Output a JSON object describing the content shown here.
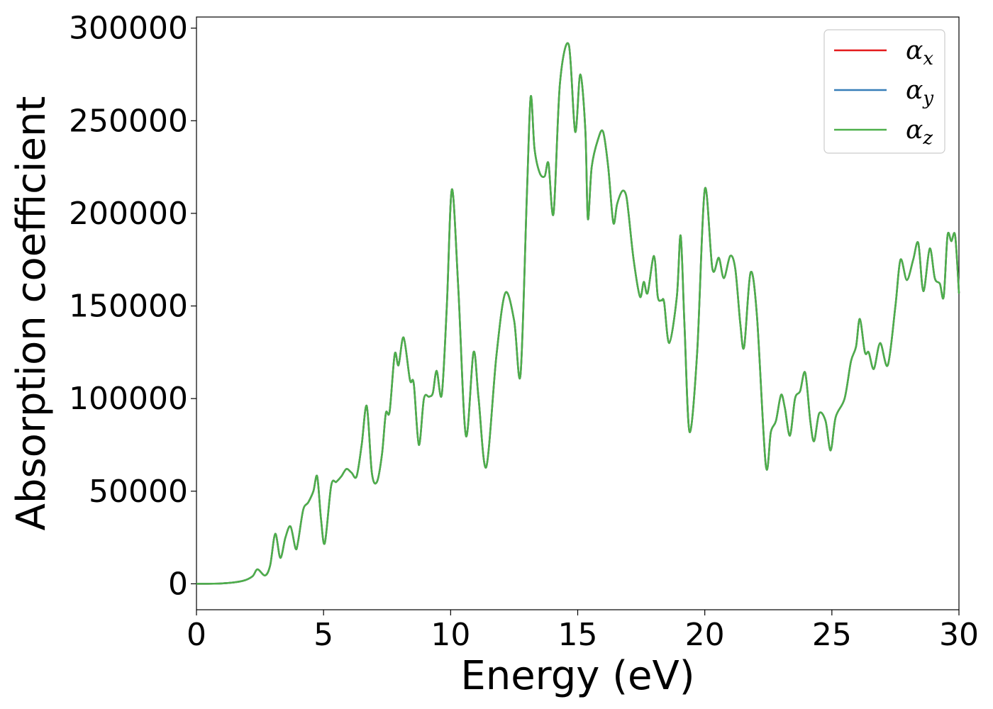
{
  "chart_data": {
    "type": "line",
    "title": "",
    "xlabel": "Energy (eV)",
    "ylabel": "Absorption coefficient",
    "xlim": [
      0,
      30
    ],
    "ylim": [
      -14000,
      306000
    ],
    "xticks": [
      0,
      5,
      10,
      15,
      20,
      25,
      30
    ],
    "yticks": [
      0,
      50000,
      100000,
      150000,
      200000,
      250000,
      300000
    ],
    "xtick_labels": [
      "0",
      "5",
      "10",
      "15",
      "20",
      "25",
      "30"
    ],
    "ytick_labels": [
      "0",
      "50000",
      "100000",
      "150000",
      "200000",
      "250000",
      "300000"
    ],
    "grid": false,
    "legend_position": "top-right",
    "series": [
      {
        "name": "α",
        "subscript": "x",
        "color": "#e41a1c"
      },
      {
        "name": "α",
        "subscript": "y",
        "color": "#377eb8"
      },
      {
        "name": "α",
        "subscript": "z",
        "color": "#4daf4a"
      }
    ],
    "x": [
      0,
      1.0,
      1.8,
      2.2,
      2.4,
      2.7,
      2.9,
      3.1,
      3.3,
      3.5,
      3.7,
      3.9,
      4.0,
      4.2,
      4.4,
      4.6,
      4.75,
      4.9,
      5.05,
      5.3,
      5.5,
      5.7,
      5.9,
      6.1,
      6.3,
      6.5,
      6.7,
      6.9,
      7.1,
      7.3,
      7.45,
      7.6,
      7.8,
      7.95,
      8.15,
      8.4,
      8.55,
      8.75,
      8.95,
      9.15,
      9.3,
      9.45,
      9.65,
      9.85,
      10.05,
      10.3,
      10.6,
      10.9,
      11.1,
      11.4,
      11.8,
      12.15,
      12.5,
      12.75,
      13.0,
      13.15,
      13.3,
      13.5,
      13.7,
      13.85,
      14.05,
      14.3,
      14.65,
      14.9,
      15.1,
      15.3,
      15.4,
      15.55,
      15.8,
      16.0,
      16.2,
      16.4,
      16.55,
      16.75,
      16.9,
      17.0,
      17.2,
      17.45,
      17.6,
      17.75,
      18.0,
      18.15,
      18.3,
      18.4,
      18.6,
      18.9,
      19.05,
      19.2,
      19.4,
      19.7,
      20.0,
      20.3,
      20.55,
      20.75,
      21.0,
      21.2,
      21.4,
      21.55,
      21.8,
      22.05,
      22.4,
      22.6,
      22.8,
      23.0,
      23.15,
      23.35,
      23.55,
      23.75,
      23.95,
      24.15,
      24.3,
      24.5,
      24.75,
      24.95,
      25.15,
      25.5,
      25.75,
      25.95,
      26.1,
      26.3,
      26.45,
      26.65,
      26.9,
      27.2,
      27.5,
      27.7,
      27.95,
      28.2,
      28.4,
      28.6,
      28.85,
      29.05,
      29.25,
      29.4,
      29.55,
      29.7,
      29.85,
      30.0
    ],
    "values": [
      0,
      200,
      1500,
      4000,
      7800,
      4500,
      10000,
      27000,
      14000,
      25000,
      31000,
      19000,
      23000,
      40000,
      44000,
      50000,
      58000,
      35000,
      22000,
      53000,
      55000,
      58000,
      62000,
      60000,
      58000,
      75000,
      96000,
      60000,
      55000,
      70000,
      92000,
      93000,
      124000,
      118000,
      133000,
      110000,
      108000,
      75000,
      100000,
      101000,
      103000,
      115000,
      102000,
      150000,
      213000,
      160000,
      80000,
      125000,
      100000,
      63000,
      123000,
      157000,
      142000,
      113000,
      210000,
      263000,
      235000,
      222000,
      220000,
      227000,
      200000,
      270000,
      291000,
      244000,
      275000,
      245000,
      197000,
      225000,
      240000,
      244000,
      225000,
      195000,
      205000,
      212000,
      210000,
      200000,
      175000,
      155000,
      163000,
      157000,
      177000,
      155000,
      153000,
      152000,
      130000,
      155000,
      188000,
      140000,
      82000,
      125000,
      213000,
      170000,
      176000,
      165000,
      177000,
      170000,
      140000,
      128000,
      168000,
      145000,
      64000,
      82000,
      88000,
      102000,
      95000,
      80000,
      100000,
      104000,
      114000,
      88000,
      77000,
      92000,
      88000,
      72000,
      90000,
      100000,
      120000,
      128000,
      143000,
      125000,
      125000,
      116000,
      130000,
      118000,
      150000,
      175000,
      164000,
      175000,
      184000,
      158000,
      181000,
      165000,
      162000,
      155000,
      188000,
      185000,
      188000,
      157000
    ]
  }
}
